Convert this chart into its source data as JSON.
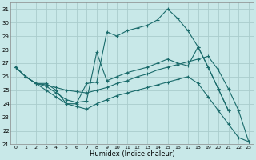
{
  "xlabel": "Humidex (Indice chaleur)",
  "xlim": [
    -0.5,
    23.5
  ],
  "ylim": [
    21,
    31.5
  ],
  "yticks": [
    21,
    22,
    23,
    24,
    25,
    26,
    27,
    28,
    29,
    30,
    31
  ],
  "xticks": [
    0,
    1,
    2,
    3,
    4,
    5,
    6,
    7,
    8,
    9,
    10,
    11,
    12,
    13,
    14,
    15,
    16,
    17,
    18,
    19,
    20,
    21,
    22,
    23
  ],
  "bg_color": "#c8e8e8",
  "grid_color": "#aacccc",
  "line_color": "#1a6b6b",
  "line1": {
    "x": [
      0,
      1,
      2,
      3,
      4,
      5,
      6,
      7,
      8,
      9,
      10,
      11,
      12,
      13,
      14,
      15,
      16,
      17,
      18,
      19,
      20,
      21
    ],
    "y": [
      26.7,
      26.0,
      25.5,
      25.5,
      25.0,
      24.0,
      24.0,
      25.5,
      25.6,
      29.3,
      29.0,
      29.4,
      29.6,
      29.8,
      30.2,
      31.0,
      30.3,
      29.4,
      28.2,
      26.7,
      25.1,
      23.5
    ]
  },
  "line2": {
    "x": [
      0,
      1,
      2,
      3,
      4,
      5,
      6,
      7,
      8,
      9,
      10,
      11,
      12,
      13,
      14,
      15,
      16,
      17,
      18,
      19,
      20,
      21
    ],
    "y": [
      26.7,
      26.0,
      25.5,
      25.3,
      24.8,
      24.3,
      24.1,
      24.2,
      27.8,
      25.7,
      26.0,
      26.3,
      26.5,
      26.7,
      27.0,
      27.3,
      27.0,
      26.8,
      28.2,
      26.7,
      25.1,
      23.5
    ]
  },
  "line3": {
    "x": [
      0,
      1,
      2,
      3,
      4,
      5,
      6,
      7,
      8,
      9,
      10,
      11,
      12,
      13,
      14,
      15,
      16,
      17,
      18,
      19,
      20,
      21,
      22,
      23
    ],
    "y": [
      26.7,
      26.0,
      25.5,
      25.4,
      25.2,
      25.0,
      24.9,
      24.8,
      25.0,
      25.2,
      25.5,
      25.7,
      26.0,
      26.2,
      26.5,
      26.7,
      26.9,
      27.1,
      27.3,
      27.5,
      26.5,
      25.1,
      23.5,
      21.2
    ]
  },
  "line4": {
    "x": [
      0,
      1,
      2,
      3,
      4,
      5,
      6,
      7,
      8,
      9,
      10,
      11,
      12,
      13,
      14,
      15,
      16,
      17,
      18,
      19,
      20,
      21,
      22,
      23
    ],
    "y": [
      26.7,
      26.0,
      25.5,
      25.0,
      24.5,
      24.0,
      23.8,
      23.6,
      24.0,
      24.3,
      24.6,
      24.8,
      25.0,
      25.2,
      25.4,
      25.6,
      25.8,
      26.0,
      25.5,
      24.5,
      23.5,
      22.5,
      21.5,
      21.2
    ]
  }
}
